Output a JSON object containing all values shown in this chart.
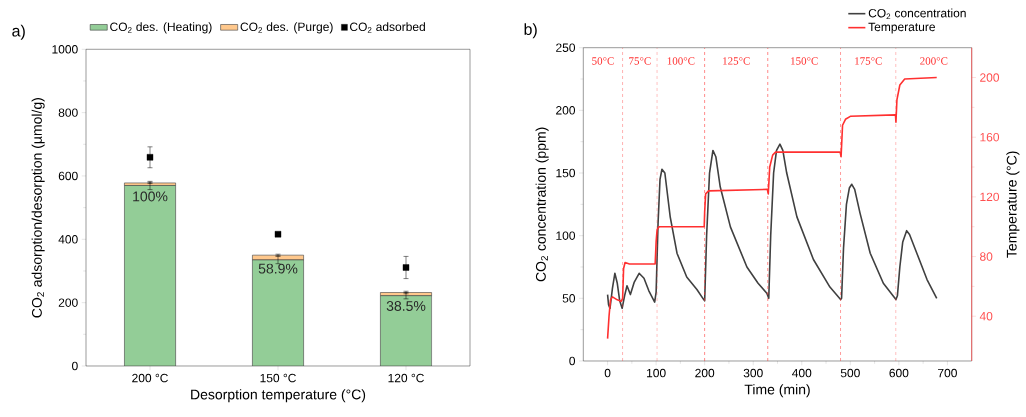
{
  "chart_data": [
    {
      "type": "bar",
      "title": "a)",
      "stacked": true,
      "legend": "top",
      "categories": [
        "200 °C",
        "150 °C",
        "120 °C"
      ],
      "xlabel": "Desorption temperature (°C)",
      "ylabel": "CO$_{2}$ adsorption/desorption (µmol/g)",
      "ylim": [
        0,
        1000
      ],
      "yticks": [
        0,
        200,
        400,
        600,
        800,
        1000
      ],
      "series": [
        {
          "name": "CO$_{2}$ des. (Heating)",
          "color": "#93cd97",
          "values": [
            570,
            335,
            222
          ],
          "errors": [
            13,
            12,
            10
          ]
        },
        {
          "name": "CO$_{2}$ des. (Purge)",
          "color": "#ffc88c",
          "values": [
            8,
            15,
            10
          ],
          "errors": [
            2,
            3,
            4
          ]
        },
        {
          "name": "CO$_{2}$ adsorbed",
          "type": "scatter",
          "marker": "square",
          "color": "#000000",
          "x": [
            "200 °C",
            "150 °C",
            "120 °C"
          ],
          "values": [
            659,
            416,
            311
          ],
          "errors": [
            33,
            null,
            35
          ]
        }
      ],
      "annotations": [
        "100%",
        "58.9%",
        "38.5%"
      ]
    },
    {
      "type": "line",
      "title": "b)",
      "legend": "top right",
      "xlabel": "Time (min)",
      "ylabel": "CO$_{2}$ concentration (ppm)",
      "y2label": "Temperature (°C)",
      "xlim": [
        -50,
        750
      ],
      "xticks": [
        0,
        100,
        200,
        300,
        400,
        500,
        600,
        700
      ],
      "ylim": [
        0,
        250
      ],
      "yticks": [
        0,
        50,
        100,
        150,
        200,
        250
      ],
      "y2lim": [
        10,
        220
      ],
      "y2ticks": [
        40,
        80,
        120,
        160,
        200
      ],
      "series": [
        {
          "name": "CO$_{2}$ concentration",
          "color": "#404040",
          "x": [
            0,
            2,
            5,
            10,
            15,
            20,
            25,
            30,
            35,
            40,
            47,
            55,
            65,
            75,
            85,
            97,
            100,
            104,
            108,
            112,
            118,
            129,
            143,
            163,
            184,
            198,
            200,
            204,
            210,
            217,
            223,
            232,
            253,
            287,
            310,
            328,
            332,
            336,
            342,
            348,
            355,
            361,
            369,
            390,
            424,
            458,
            480,
            482,
            486,
            492,
            498,
            503,
            509,
            520,
            541,
            568,
            594,
            597,
            602,
            608,
            616,
            622,
            637,
            658,
            678
          ],
          "values": [
            53,
            45,
            42,
            58,
            70,
            62,
            48,
            42,
            52,
            60,
            53,
            63,
            70,
            66,
            56,
            47,
            55,
            110,
            145,
            153,
            150,
            115,
            86,
            67,
            57,
            49,
            48,
            100,
            150,
            168,
            163,
            139,
            107,
            75,
            62,
            54,
            50,
            100,
            150,
            168,
            173,
            168,
            150,
            115,
            81,
            59,
            49,
            50,
            90,
            125,
            138,
            141,
            137,
            118,
            86,
            62,
            49,
            52,
            75,
            95,
            104,
            101,
            86,
            65,
            50
          ]
        },
        {
          "name": "Temperature",
          "color": "#ff3030",
          "axis": "y2",
          "x": [
            0,
            3,
            6,
            10,
            20,
            28,
            31,
            33,
            36,
            45,
            60,
            98,
            100,
            102,
            106,
            199,
            200,
            202,
            208,
            329,
            331,
            334,
            340,
            346,
            479,
            481,
            484,
            490,
            500,
            593,
            594,
            596,
            602,
            612,
            678
          ],
          "values": [
            25,
            40,
            51,
            53,
            51,
            50,
            52,
            72,
            76,
            75,
            75,
            75,
            90,
            98,
            100,
            100,
            110,
            122,
            124,
            125,
            122,
            140,
            148,
            150,
            150,
            147,
            168,
            172,
            174,
            175,
            170,
            185,
            195,
            199,
            200
          ]
        }
      ],
      "ref_lines": [
        {
          "axis": "x",
          "value": 31,
          "color": "#ff3030",
          "line_style": "dashed"
        },
        {
          "axis": "x",
          "value": 102,
          "color": "#ff3030",
          "line_style": "dashed"
        },
        {
          "axis": "x",
          "value": 200,
          "color": "#ff3030",
          "line_style": "dashed"
        },
        {
          "axis": "x",
          "value": 330,
          "color": "#ff3030",
          "line_style": "dashed"
        },
        {
          "axis": "x",
          "value": 480,
          "color": "#ff3030",
          "line_style": "dashed"
        },
        {
          "axis": "x",
          "value": 594,
          "color": "#ff3030",
          "line_style": "dashed"
        }
      ],
      "annotations": [
        "50°C",
        "75°C",
        "100°C",
        "125°C",
        "150°C",
        "175°C",
        "200°C"
      ]
    }
  ]
}
